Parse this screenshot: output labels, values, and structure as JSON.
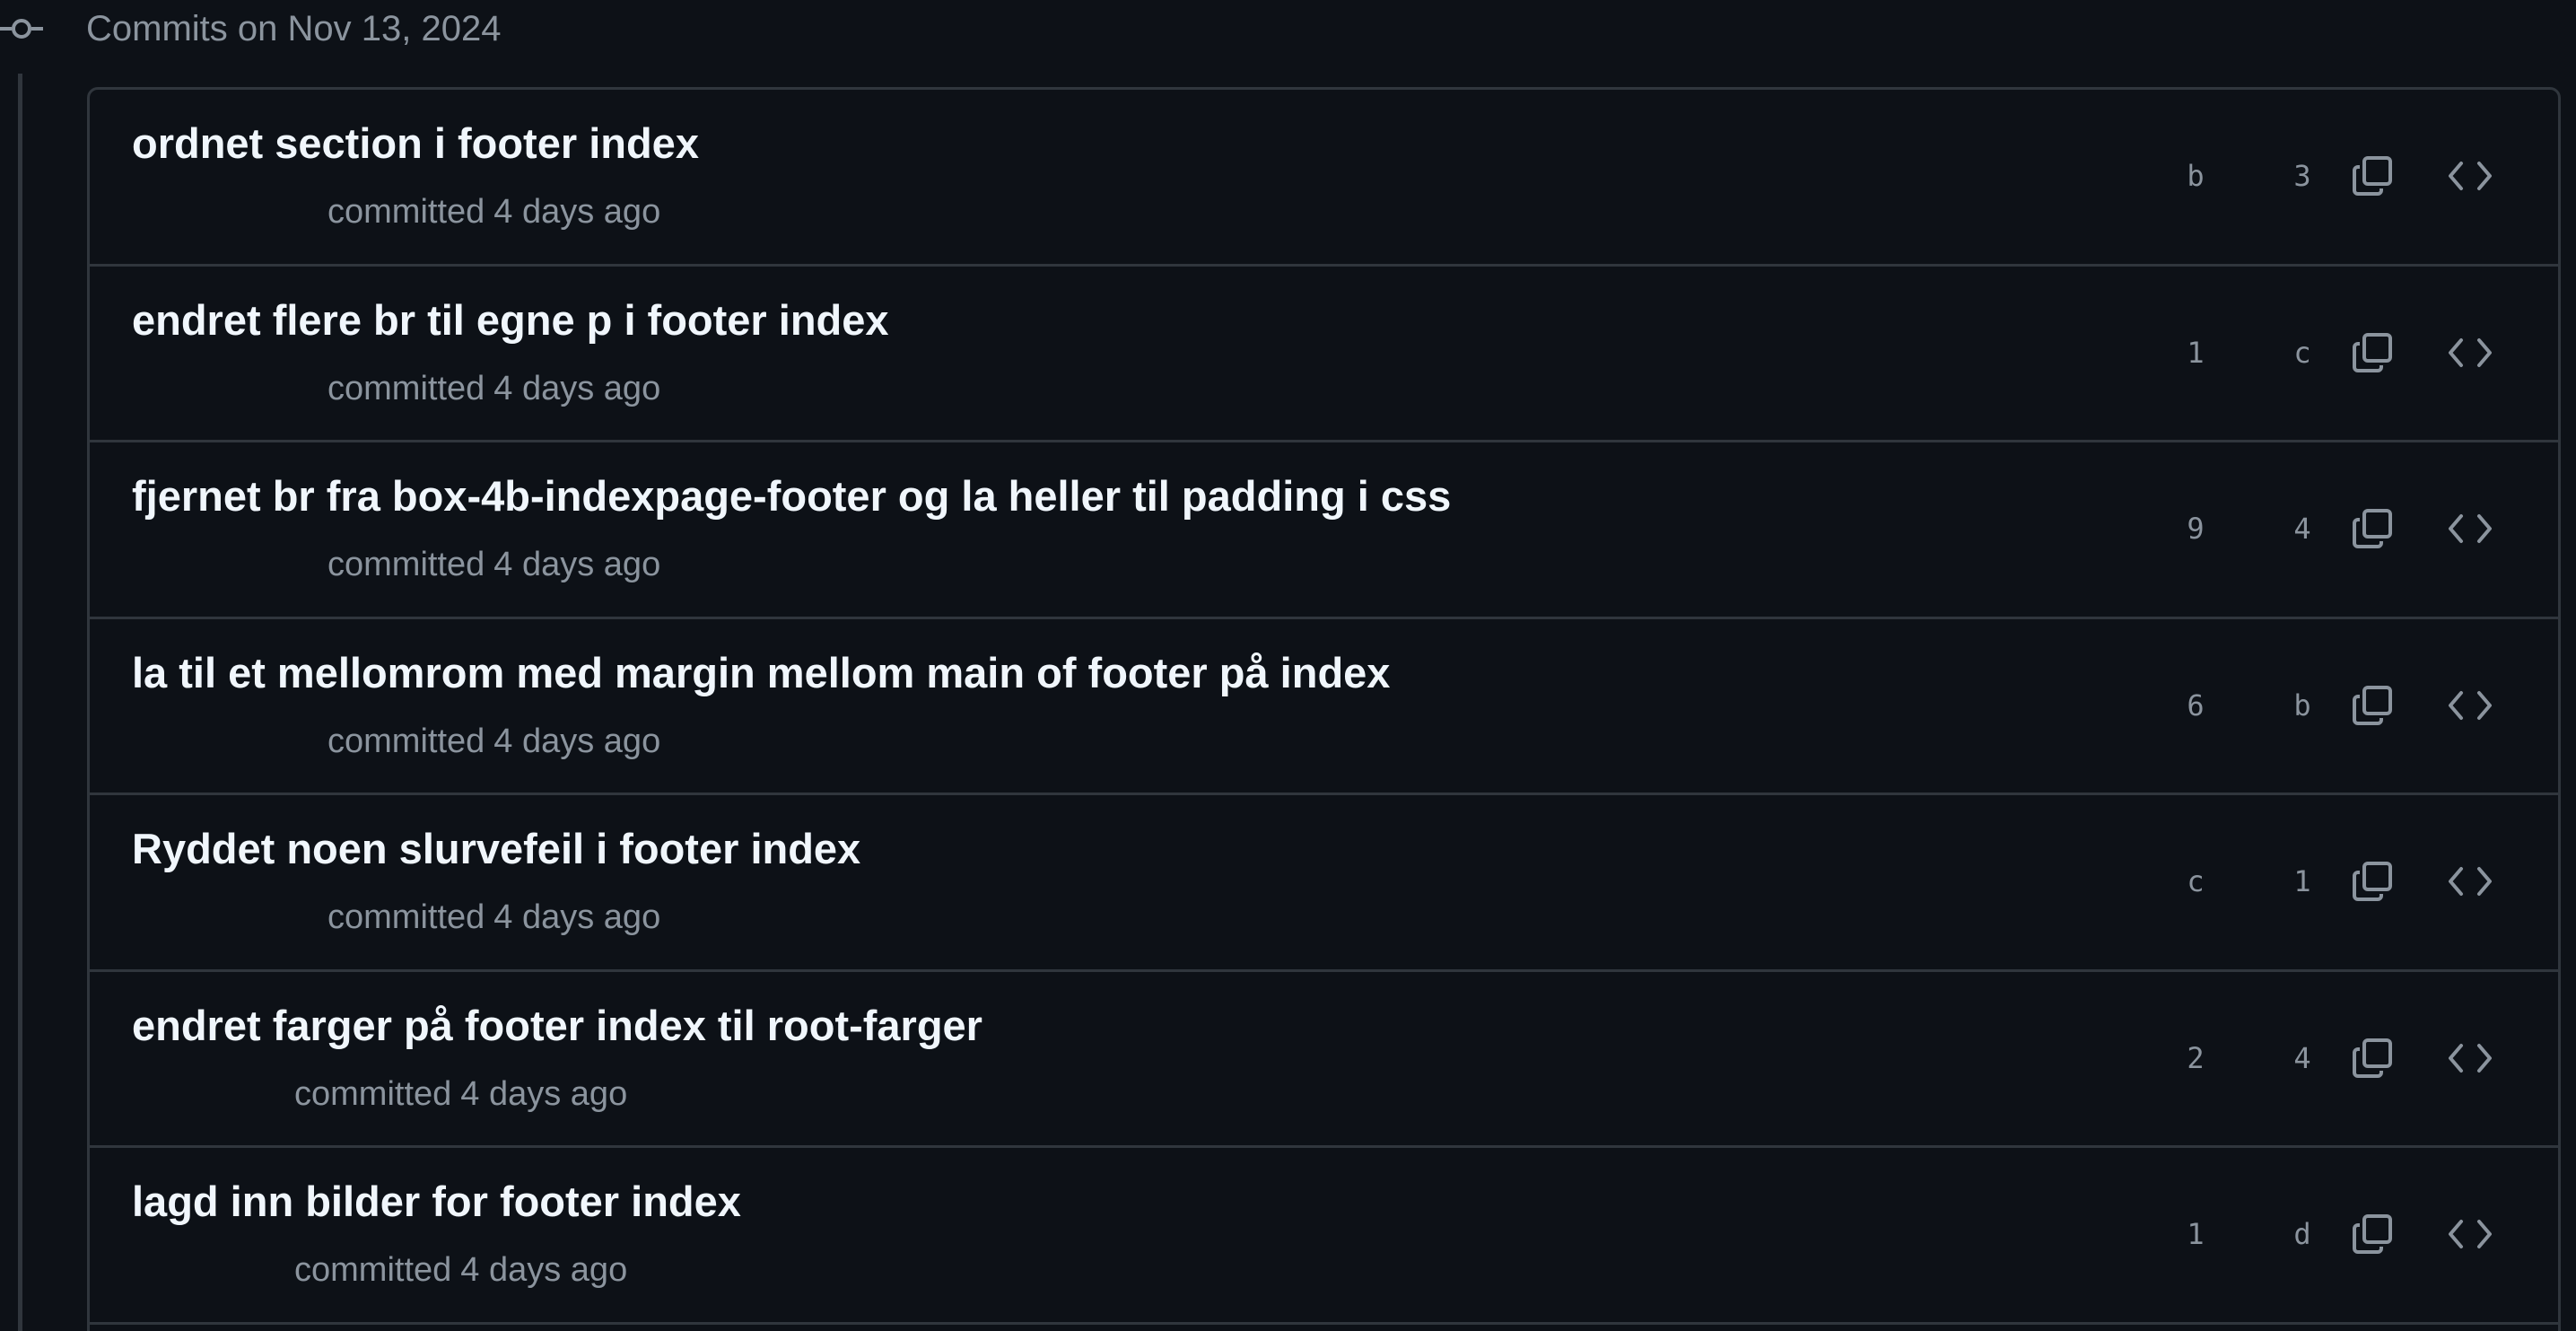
{
  "group": {
    "title": "Commits on Nov 13, 2024"
  },
  "icons": {
    "timeline_node": "git-commit-icon",
    "copy": "copy-icon",
    "browse": "code-icon"
  },
  "colors": {
    "background": "#0d1117",
    "border": "#30363d",
    "title_text": "#f0f6fc",
    "muted_text": "#8b949e"
  },
  "commits": [
    {
      "title": "ordnet section i footer index",
      "committed_label": "committed",
      "time": "4 days ago",
      "sha_a": "b",
      "sha_b": "3"
    },
    {
      "title": "endret flere br til egne p i footer index",
      "committed_label": "committed",
      "time": "4 days ago",
      "sha_a": "1",
      "sha_b": "c"
    },
    {
      "title": "fjernet br fra box-4b-indexpage-footer og la heller til padding i css",
      "committed_label": "committed",
      "time": "4 days ago",
      "sha_a": "9",
      "sha_b": "4"
    },
    {
      "title": "la til et mellomrom med margin mellom main of footer på index",
      "committed_label": "committed",
      "time": "4 days ago",
      "sha_a": "6",
      "sha_b": "b"
    },
    {
      "title": "Ryddet noen slurvefeil i footer index",
      "committed_label": "committed",
      "time": "4 days ago",
      "sha_a": "c",
      "sha_b": "1"
    },
    {
      "title": "endret farger på footer index til root-farger",
      "committed_label": "committed",
      "time": "4 days ago",
      "sha_a": "2",
      "sha_b": "4"
    },
    {
      "title": "lagd inn bilder for footer index",
      "committed_label": "committed",
      "time": "4 days ago",
      "sha_a": "1",
      "sha_b": "d"
    }
  ]
}
